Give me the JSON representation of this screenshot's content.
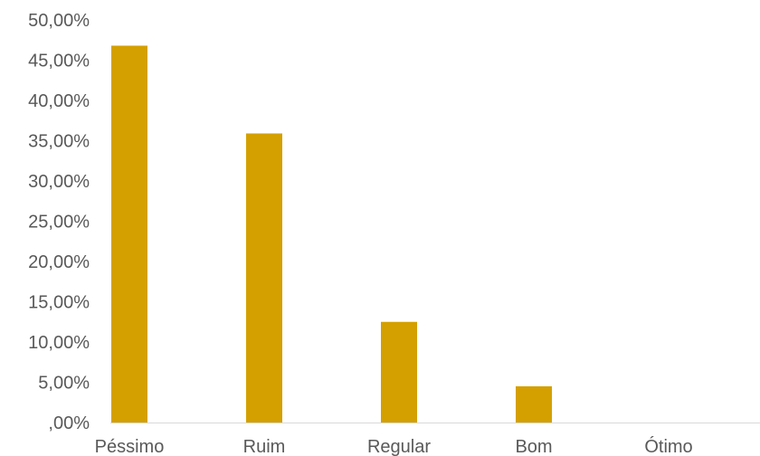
{
  "chart_data": {
    "type": "bar",
    "title": "",
    "xlabel": "",
    "ylabel": "",
    "categories": [
      "Péssimo",
      "Ruim",
      "Regular",
      "Bom",
      "Ótimo"
    ],
    "values": [
      46.8,
      35.9,
      12.5,
      4.5,
      0.0
    ],
    "ylim": [
      0,
      50
    ],
    "yticks": [
      0,
      5,
      10,
      15,
      20,
      25,
      30,
      35,
      40,
      45,
      50
    ],
    "ytick_labels": [
      ",00%",
      "5,00%",
      "10,00%",
      "15,00%",
      "20,00%",
      "25,00%",
      "30,00%",
      "35,00%",
      "40,00%",
      "45,00%",
      "50,00%"
    ],
    "grid": false,
    "legend": "none",
    "bar_color": "#D4A000",
    "axis_color": "#D9D9D9",
    "text_color": "#595959"
  }
}
